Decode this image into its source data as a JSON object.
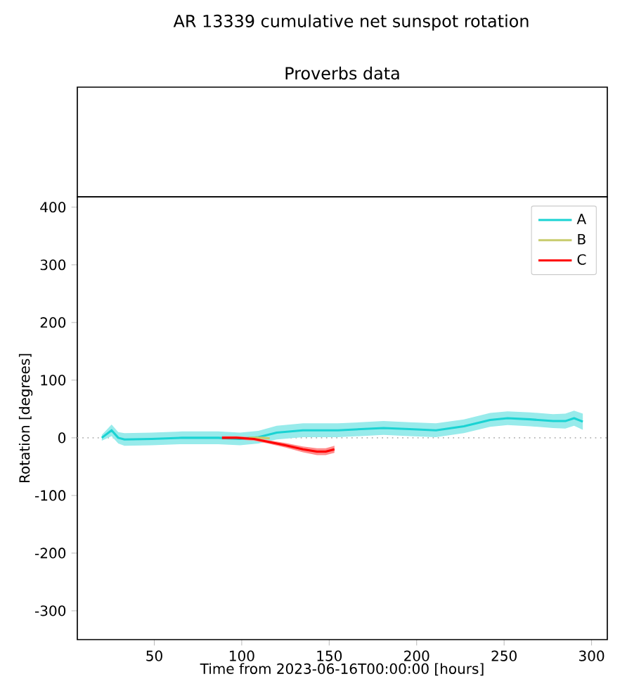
{
  "chart_data": {
    "type": "line",
    "title": "AR 13339 cumulative net sunspot rotation",
    "subtitle": "Proverbs data",
    "xlabel": "Time from 2023-06-16T00:00:00 [hours]",
    "ylabel": "Rotation [degrees]",
    "xlim": [
      6,
      309
    ],
    "xticks": [
      50,
      100,
      150,
      200,
      250,
      300
    ],
    "ylim": [
      -350,
      418
    ],
    "yticks": [
      -300,
      -200,
      -100,
      0,
      100,
      200,
      300,
      400
    ],
    "grid": false,
    "legend": "top right",
    "series": [
      {
        "name": "A",
        "color": "#1ad3d3",
        "x": [
          20,
          25.6,
          29.4,
          33,
          48.5,
          66,
          86.6,
          99,
          109.5,
          120,
          135,
          155,
          181,
          196,
          211,
          227,
          242,
          252,
          265,
          278,
          285,
          290,
          295
        ],
        "values": [
          0,
          13,
          0,
          -3,
          -2,
          0,
          0,
          -2,
          1,
          9,
          13,
          13,
          17,
          15,
          13,
          20,
          31,
          34,
          32,
          29,
          29,
          34,
          28
        ],
        "lower": [
          -5,
          3,
          -10,
          -14,
          -13,
          -11,
          -11,
          -13,
          -10,
          -3,
          1,
          1,
          5,
          3,
          1,
          8,
          19,
          22,
          20,
          17,
          16,
          21,
          14
        ],
        "upper": [
          5,
          23,
          10,
          8,
          9,
          11,
          11,
          9,
          12,
          21,
          25,
          25,
          29,
          27,
          25,
          32,
          43,
          46,
          44,
          41,
          42,
          47,
          42
        ]
      },
      {
        "name": "B",
        "color": "#c8cc6e",
        "x": [
          104,
          108,
          112,
          116
        ],
        "values": [
          0,
          0,
          0,
          -1
        ]
      },
      {
        "name": "C",
        "color": "#ff0000",
        "x": [
          88.7,
          97,
          107,
          115,
          125,
          135,
          143,
          148,
          153
        ],
        "values": [
          0,
          0,
          -2,
          -7,
          -13,
          -20,
          -24,
          -24,
          -20
        ],
        "lower": [
          -3,
          -3,
          -5,
          -10,
          -17,
          -25,
          -30,
          -30,
          -26
        ],
        "upper": [
          3,
          3,
          1,
          -4,
          -9,
          -15,
          -18,
          -18,
          -14
        ]
      }
    ],
    "ref_lines": [
      {
        "axis": "y",
        "value": 0,
        "color": "#b0b0b0",
        "line_style": "dotted"
      }
    ]
  }
}
